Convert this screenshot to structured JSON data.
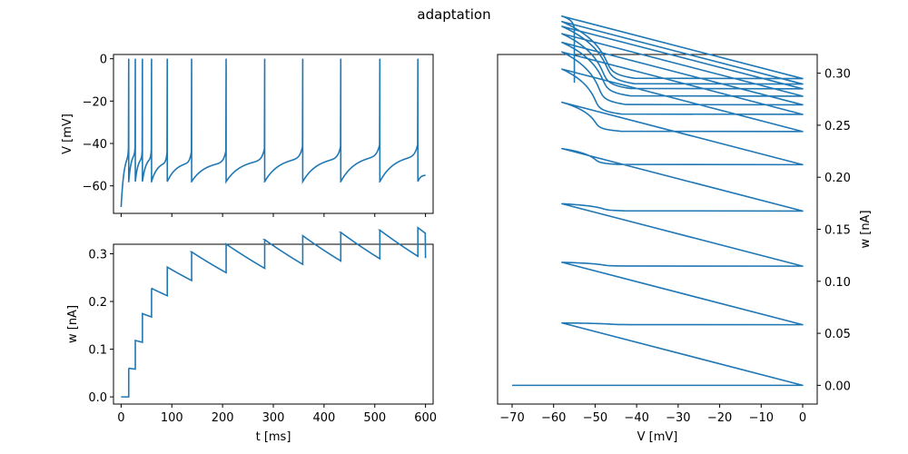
{
  "figure": {
    "title": "adaptation"
  },
  "chart_data": [
    {
      "id": "voltage",
      "type": "line",
      "xlabel": "",
      "ylabel": "V [mV]",
      "xlim": [
        -15,
        615
      ],
      "ylim": [
        -73,
        2
      ],
      "yticks": [
        0,
        -20,
        -40,
        -60
      ],
      "ytick_labels": [
        "0",
        "−20",
        "−40",
        "−60"
      ],
      "xticks": [
        0,
        100,
        200,
        300,
        400,
        500,
        600
      ],
      "xtick_labels_visible": false,
      "line_color": "#1f77b4",
      "v_rest_start": -70,
      "v_reset": -58,
      "v_peak": 0,
      "spike_times": [
        15,
        28,
        42,
        60,
        91,
        139,
        207,
        283,
        358,
        433,
        510,
        585
      ],
      "pre_spike_voltage": [
        -46,
        -45,
        -47,
        -47,
        -49,
        -49,
        -49,
        -48,
        -47,
        -47,
        -46,
        -46
      ],
      "v_end": -55,
      "t_end": 600
    },
    {
      "id": "adaptation-current",
      "type": "line",
      "xlabel": "t [ms]",
      "ylabel": "w [nA]",
      "xlim": [
        -15,
        615
      ],
      "ylim": [
        -0.015,
        0.32
      ],
      "yticks": [
        0.0,
        0.1,
        0.2,
        0.3
      ],
      "ytick_labels": [
        "0.0",
        "0.1",
        "0.2",
        "0.3"
      ],
      "xticks": [
        0,
        100,
        200,
        300,
        400,
        500,
        600
      ],
      "xtick_labels": [
        "0",
        "100",
        "200",
        "300",
        "400",
        "500",
        "600"
      ],
      "line_color": "#1f77b4",
      "w_jump": 0.06,
      "w_tau_ms": 440,
      "w_start": 0.0,
      "w_end": 0.291
    },
    {
      "id": "phase-plane",
      "type": "line",
      "xlabel": "V [mV]",
      "ylabel": "w [nA]",
      "ylabel_side": "right",
      "xlim": [
        -73.5,
        3.5
      ],
      "ylim": [
        -0.018,
        0.318
      ],
      "xticks": [
        -70,
        -60,
        -50,
        -40,
        -30,
        -20,
        -10,
        0
      ],
      "xtick_labels": [
        "−70",
        "−60",
        "−50",
        "−40",
        "−30",
        "−20",
        "−10",
        "0"
      ],
      "yticks": [
        0.0,
        0.05,
        0.1,
        0.15,
        0.2,
        0.25,
        0.3
      ],
      "ytick_labels": [
        "0.00",
        "0.05",
        "0.10",
        "0.15",
        "0.20",
        "0.25",
        "0.30"
      ],
      "line_color": "#1f77b4"
    }
  ]
}
